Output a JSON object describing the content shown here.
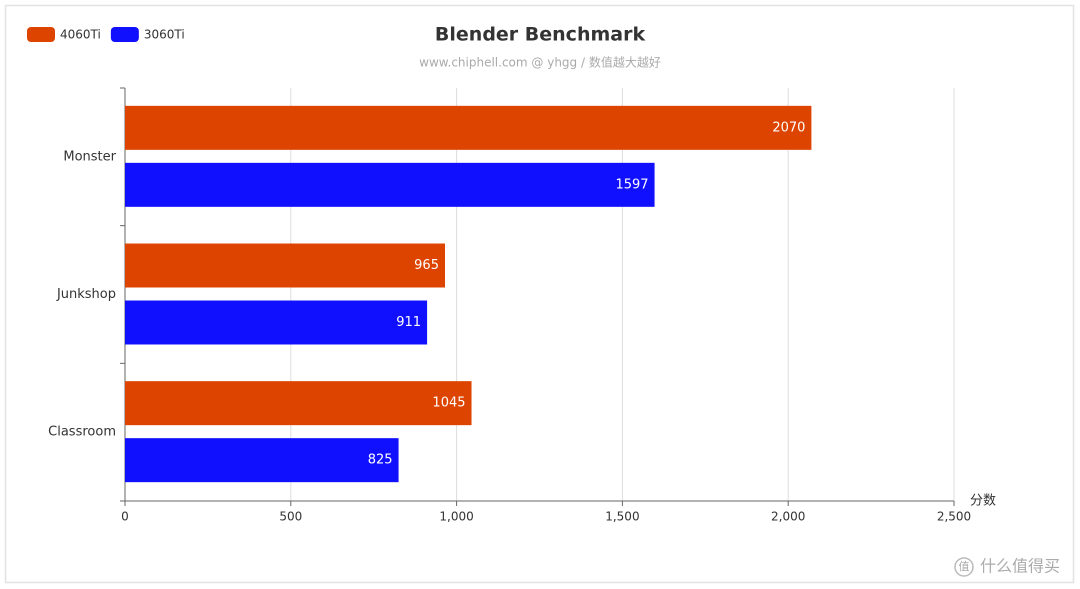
{
  "chart_data": {
    "type": "bar",
    "orientation": "horizontal",
    "title": "Blender Benchmark",
    "subtitle": "www.chiphell.com @ yhgg / 数值越大越好",
    "x_label": "分数",
    "categories": [
      "Monster",
      "Junkshop",
      "Classroom"
    ],
    "series": [
      {
        "name": "4060Ti",
        "color": "#dd4400",
        "values": [
          2070,
          965,
          1045
        ]
      },
      {
        "name": "3060Ti",
        "color": "#1010ff",
        "values": [
          1597,
          911,
          825
        ]
      }
    ],
    "xlim": [
      0,
      2500
    ],
    "xticks": [
      0,
      500,
      {
        "value": 1000,
        "label": "1,000"
      },
      {
        "value": 1500,
        "label": "1,500"
      },
      {
        "value": 2000,
        "label": "2,000"
      },
      {
        "value": 2500,
        "label": "2,500"
      }
    ],
    "grid": true,
    "legend": "top-left"
  },
  "watermark": {
    "icon": "值",
    "text": "什么值得买"
  }
}
